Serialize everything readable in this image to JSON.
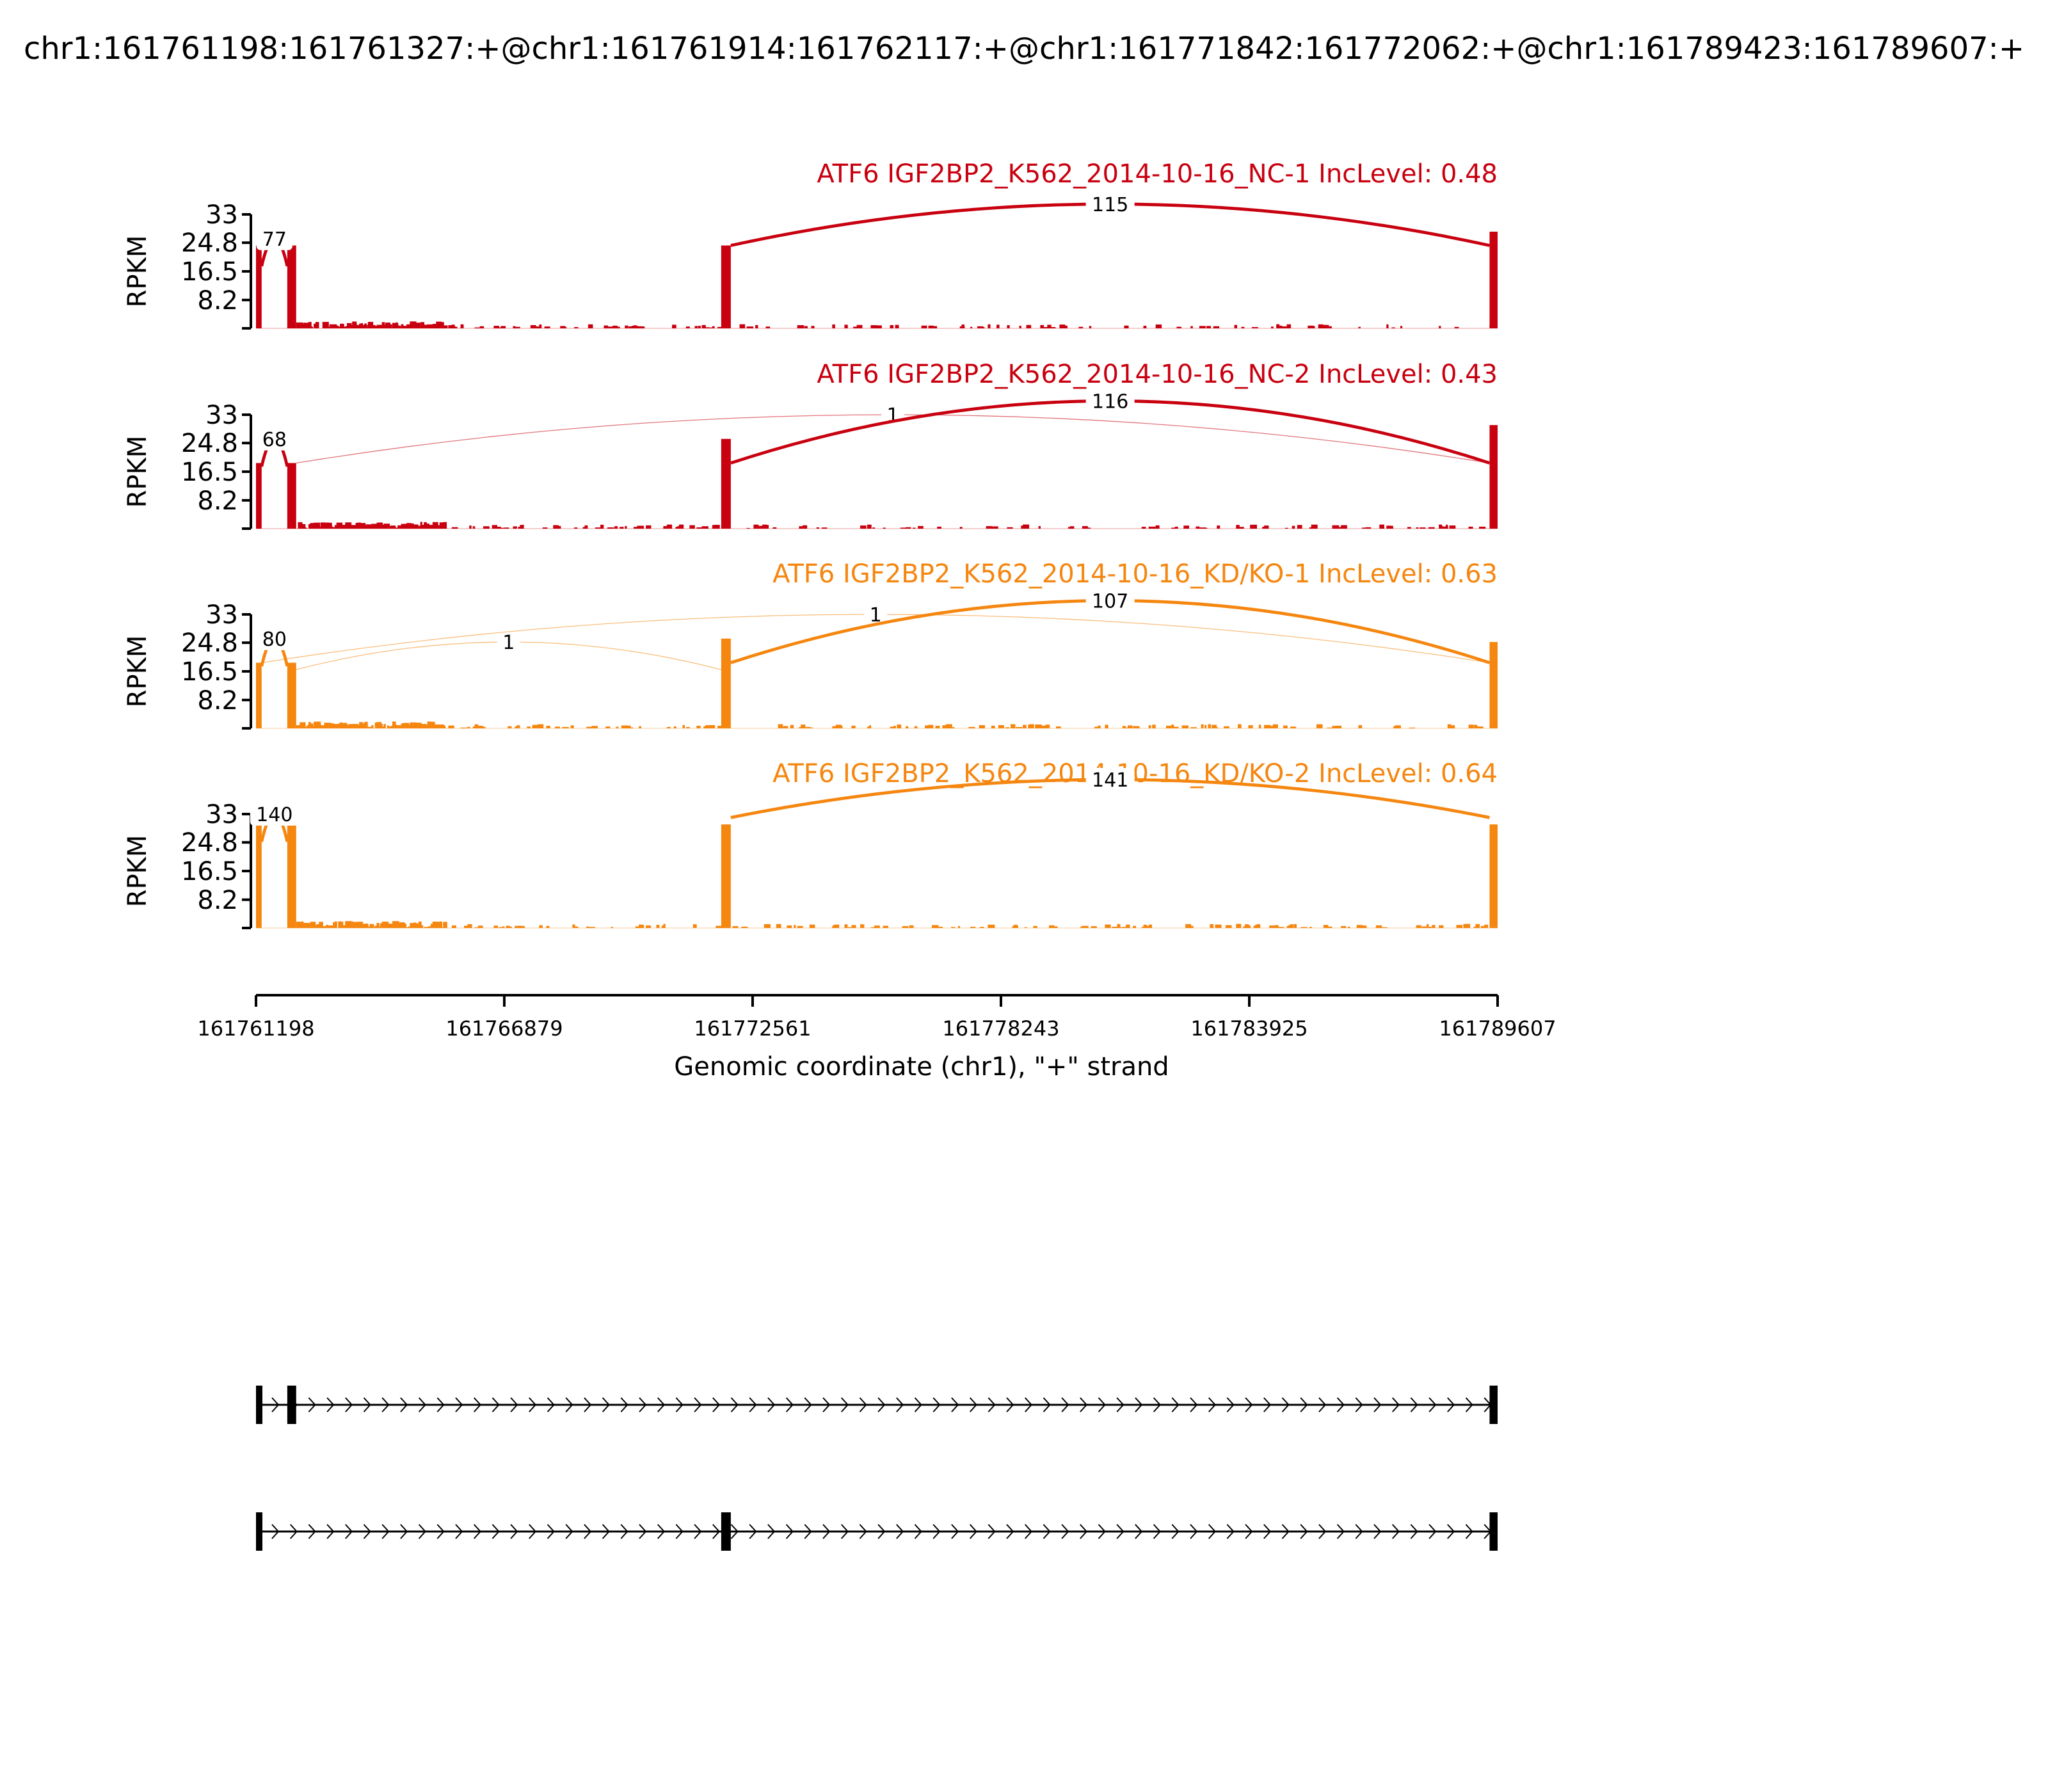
{
  "title": "chr1:161761198:161761327:+@chr1:161761914:161762117:+@chr1:161771842:161772062:+@chr1:161789423:161789607:+",
  "colors": {
    "nc": "#C8000F",
    "kd": "#F5860F",
    "axis": "#000000"
  },
  "chart_data": {
    "type": "sashimi",
    "xlabel": "Genomic coordinate (chr1), \"+\" strand",
    "xlim": [
      161761198,
      161789607
    ],
    "xticks": [
      161761198,
      161766879,
      161772561,
      161778243,
      161783925,
      161789607
    ],
    "ylabel": "RPKM",
    "ylim": [
      0,
      33
    ],
    "yticks": [
      8.2,
      16.5,
      24.8,
      33
    ],
    "exons": [
      [
        161761198,
        161761327
      ],
      [
        161761914,
        161762117
      ],
      [
        161771842,
        161772062
      ],
      [
        161789423,
        161789607
      ]
    ],
    "samples": [
      {
        "title": "ATF6 IGF2BP2_K562_2014-10-16_NC-1 IncLevel: 0.48",
        "group": "nc",
        "exon_cov": [
          24,
          24,
          24,
          28
        ],
        "junctions": [
          {
            "from": 161761327,
            "to": 161761914,
            "count": "77",
            "weight": 3,
            "ylevel": 26
          },
          {
            "from": 161772062,
            "to": 161789423,
            "count": "115",
            "weight": 3,
            "ylevel": 36
          }
        ]
      },
      {
        "title": "ATF6 IGF2BP2_K562_2014-10-16_NC-2 IncLevel: 0.43",
        "group": "nc",
        "exon_cov": [
          19,
          19,
          26,
          30
        ],
        "junctions": [
          {
            "from": 161761327,
            "to": 161761914,
            "count": "68",
            "weight": 3,
            "ylevel": 26
          },
          {
            "from": 161762117,
            "to": 161789423,
            "count": "1",
            "weight": 0.8,
            "ylevel": 33
          },
          {
            "from": 161772062,
            "to": 161789423,
            "count": "116",
            "weight": 3,
            "ylevel": 37
          }
        ]
      },
      {
        "title": "ATF6 IGF2BP2_K562_2014-10-16_KD/KO-1 IncLevel: 0.63",
        "group": "kd",
        "exon_cov": [
          19,
          19,
          26,
          25
        ],
        "junctions": [
          {
            "from": 161761327,
            "to": 161761914,
            "count": "80",
            "weight": 3,
            "ylevel": 26
          },
          {
            "from": 161762117,
            "to": 161771842,
            "count": "1",
            "weight": 0.8,
            "ylevel": 25
          },
          {
            "from": 161761327,
            "to": 161789423,
            "count": "1",
            "weight": 0.8,
            "ylevel": 33
          },
          {
            "from": 161772062,
            "to": 161789423,
            "count": "107",
            "weight": 3,
            "ylevel": 37
          }
        ]
      },
      {
        "title": "ATF6 IGF2BP2_K562_2014-10-16_KD/KO-2 IncLevel: 0.64",
        "group": "kd",
        "exon_cov": [
          32,
          32,
          30,
          30
        ],
        "junctions": [
          {
            "from": 161761327,
            "to": 161761914,
            "count": "140",
            "weight": 3,
            "ylevel": 33
          },
          {
            "from": 161772062,
            "to": 161789423,
            "count": "141",
            "weight": 3,
            "ylevel": 43
          }
        ]
      }
    ],
    "isoforms": [
      {
        "exons": [
          [
            161761198,
            161761327
          ],
          [
            161761914,
            161762117
          ],
          [
            161789423,
            161789607
          ]
        ]
      },
      {
        "exons": [
          [
            161761198,
            161761327
          ],
          [
            161771842,
            161772062
          ],
          [
            161789423,
            161789607
          ]
        ]
      }
    ]
  }
}
